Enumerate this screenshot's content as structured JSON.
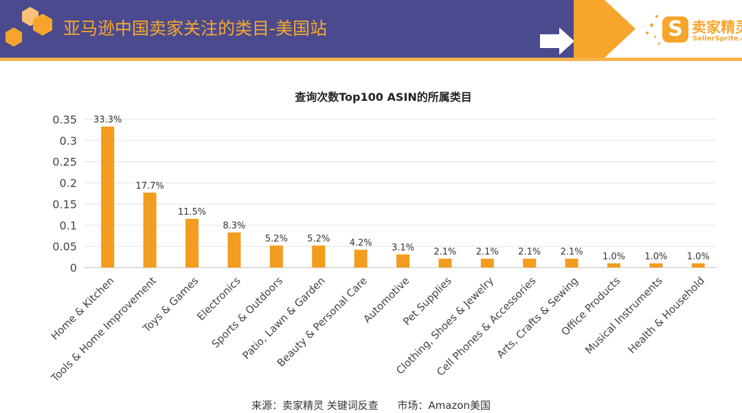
{
  "header": {
    "title": "亚马逊中国卖家关注的类目-美国站",
    "logo_cn": "卖家精灵",
    "logo_en": "SellerSprite.com",
    "logo_letter": "S"
  },
  "colors": {
    "header_bg": "#4b4a8f",
    "accent": "#f7a928",
    "bar": "#f39c1f"
  },
  "source": {
    "label": "来源：卖家精灵 关键词反查",
    "market": "市场：Amazon美国"
  },
  "chart_data": {
    "type": "bar",
    "title": "查询次数Top100 ASIN的所属类目",
    "categories": [
      "Home & Kitchen",
      "Tools & Home Improvement",
      "Toys & Games",
      "Electronics",
      "Sports & Outdoors",
      "Patio, Lawn & Garden",
      "Beauty & Personal Care",
      "Automotive",
      "Pet Supplies",
      "Clothing, Shoes & Jewelry",
      "Cell Phones & Accessories",
      "Arts, Crafts & Sewing",
      "Office Products",
      "Musical Instruments",
      "Health & Household"
    ],
    "values": [
      0.333,
      0.177,
      0.115,
      0.083,
      0.052,
      0.052,
      0.042,
      0.031,
      0.021,
      0.021,
      0.021,
      0.021,
      0.01,
      0.01,
      0.01
    ],
    "data_labels": [
      "33.3%",
      "17.7%",
      "11.5%",
      "8.3%",
      "5.2%",
      "5.2%",
      "4.2%",
      "3.1%",
      "2.1%",
      "2.1%",
      "2.1%",
      "2.1%",
      "1.0%",
      "1.0%",
      "1.0%"
    ],
    "yticks": [
      "0",
      "0.05",
      "0.1",
      "0.15",
      "0.2",
      "0.25",
      "0.3",
      "0.35"
    ],
    "ylim": [
      0,
      0.35
    ],
    "grid": true
  }
}
